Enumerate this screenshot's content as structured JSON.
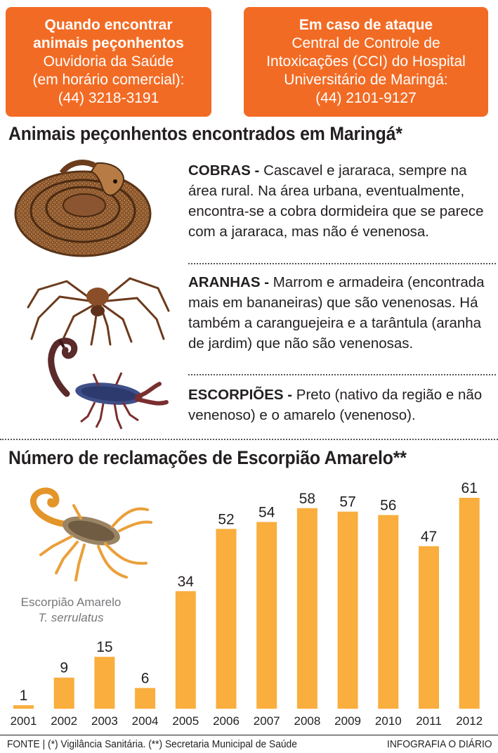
{
  "boxes": {
    "left": {
      "title_line1": "Quando encontrar",
      "title_line2": "animais peçonhentos",
      "line3": "Ouvidoria da Saúde",
      "line4": "(em horário comercial):",
      "phone": "(44) 3218-3191"
    },
    "right": {
      "title": "Em caso de ataque",
      "line2": "Central de Controle de",
      "line3": "Intoxicações (CCI) do Hospital",
      "line4": "Universitário de Maringá:",
      "phone": "(44) 2101-9127"
    }
  },
  "sections": {
    "animals_title": "Animais peçonhentos encontrados em Maringá*",
    "complaints_title": "Número de reclamações de Escorpião Amarelo**"
  },
  "animals": {
    "cobras": {
      "label": "COBRAS -",
      "text": "Cascavel e jararaca, sempre na área rural. Na área urbana, eventualmente, encontra-se a cobra dormideira que se parece com a jararaca, mas não é venenosa."
    },
    "aranhas": {
      "label": "ARANHAS -",
      "text": "Marrom e armadeira (encontrada mais em bananeiras) que são venenosas. Há também a caranguejeira e a tarântula (aranha de jardim) que não são venenosas."
    },
    "escorpioes": {
      "label": "ESCORPIÕES -",
      "text": "Preto (nativo da região e não venenoso) e o amarelo (venenoso)."
    }
  },
  "caption": {
    "name": "Escorpião Amarelo",
    "species": "T. serrulatus"
  },
  "colors": {
    "orange_box": "#f26b24",
    "bar": "#f9ae3d",
    "text": "#231f20",
    "caption": "#77787b"
  },
  "icons": [
    "snake-illustration",
    "spider-illustration",
    "dark-scorpion-illustration",
    "yellow-scorpion-illustration"
  ],
  "chart_data": {
    "type": "bar",
    "categories": [
      "2001",
      "2002",
      "2003",
      "2004",
      "2005",
      "2006",
      "2007",
      "2008",
      "2009",
      "2010",
      "2011",
      "2012"
    ],
    "values": [
      1,
      9,
      15,
      6,
      34,
      52,
      54,
      58,
      57,
      56,
      47,
      61
    ],
    "title": "Número de reclamações de Escorpião Amarelo**",
    "xlabel": "",
    "ylabel": "",
    "ylim": [
      0,
      61
    ],
    "grid": false,
    "legend": "none",
    "data_labels": true
  },
  "footer": {
    "source": "FONTE  |  (*) Vigilância Sanitária. (**) Secretaria Municipal de Saúde",
    "credit": "INFOGRAFIA O DIÁRIO"
  }
}
